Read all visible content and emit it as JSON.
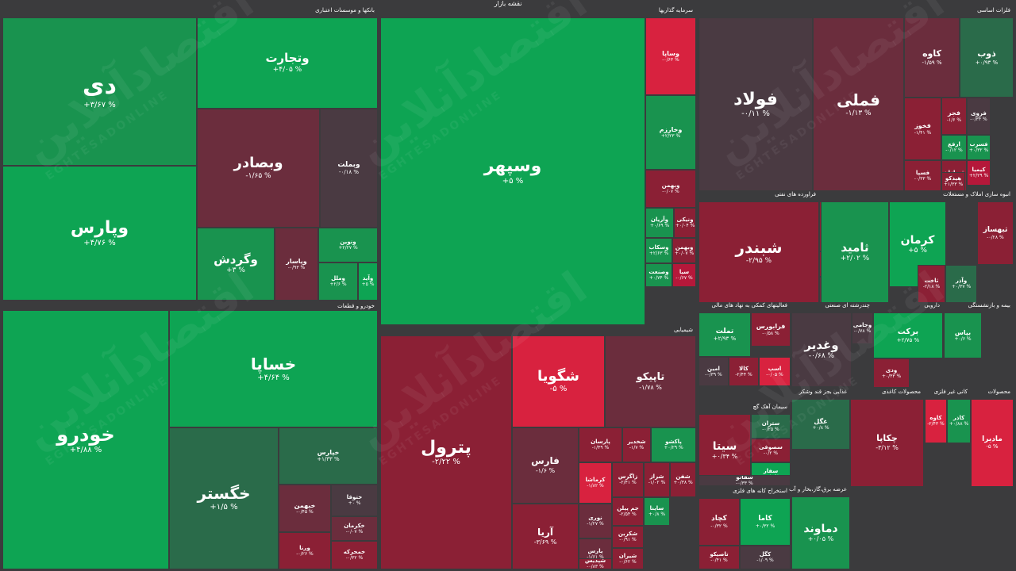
{
  "title": "نقشه بازار",
  "watermark": {
    "fa": "اقتصادآنلاین",
    "en": "EGHTESADONLINE"
  },
  "colors": {
    "g3": "#0ea453",
    "g2": "#19934f",
    "g1": "#2a6b4a",
    "n": "#4a3a42",
    "r1": "#6b2d3d",
    "r2": "#8b2035",
    "r3": "#b5183a",
    "r4": "#d8223f",
    "bg": "#3b3b3d"
  },
  "chart_data": {
    "type": "treemap",
    "sectors": [
      {
        "name": "بانکها و موسسات اعتباری",
        "stocks": [
          {
            "name": "دی",
            "change": "+۳/۶۷ %"
          },
          {
            "name": "وتجارت",
            "change": "+۴/۰۵ %"
          },
          {
            "name": "وپارس",
            "change": "+۴/۷۶ %"
          },
          {
            "name": "وبصادر",
            "change": "-۱/۶۵ %"
          },
          {
            "name": "وبملت",
            "change": "-۰/۱۸ %"
          },
          {
            "name": "وگردش",
            "change": "+۳ %"
          },
          {
            "name": "وپاسار",
            "change": "-۰/۹۳ %"
          },
          {
            "name": "ونوین",
            "change": "+۲/۲۷ %"
          },
          {
            "name": "وملل",
            "change": "+۲/۶ %"
          },
          {
            "name": "وآید",
            "change": "+۵ %"
          }
        ]
      },
      {
        "name": "سرمایه گذاریها",
        "stocks": [
          {
            "name": "وسپهر",
            "change": "+۵ %"
          },
          {
            "name": "وساپا",
            "change": "-۰/۶۳ %"
          },
          {
            "name": "وخارزم",
            "change": "+۲/۲۳ %"
          },
          {
            "name": "وبهمن",
            "change": "-۰/۰۷ %"
          },
          {
            "name": "وآریان",
            "change": "+۰/۶۹ %"
          },
          {
            "name": "ونیکی",
            "change": "+۰/۰۴ %"
          },
          {
            "name": "وسکاب",
            "change": "+۲/۶۳ %"
          },
          {
            "name": "وبهمن",
            "change": "+۰/۰۷ %"
          },
          {
            "name": "وصنعت",
            "change": "+۰/۷۴ %"
          },
          {
            "name": "سیا",
            "change": "-۰/۶۷ %"
          }
        ]
      },
      {
        "name": "فلزات اساسی",
        "stocks": [
          {
            "name": "فولاد",
            "change": "-۰/۱۱ %"
          },
          {
            "name": "فملی",
            "change": "-۱/۱۳ %"
          },
          {
            "name": "کاوه",
            "change": "-۱/۵۹ %"
          },
          {
            "name": "ذوب",
            "change": "+۰/۹۳ %"
          },
          {
            "name": "فخوز",
            "change": "-۱/۴۱ %"
          },
          {
            "name": "فجر",
            "change": "-۱/۶ %"
          },
          {
            "name": "فروی",
            "change": "-۰/۳۴ %"
          },
          {
            "name": "ارفع",
            "change": "-۰/۱۲ %"
          },
          {
            "name": "فسرب",
            "change": "+۰/۳۲ %"
          },
          {
            "name": "فسپا",
            "change": "-۰/۳۳ %"
          },
          {
            "name": "فسازان",
            "change": "-۱/۷۸ %"
          },
          {
            "name": "کیمیا",
            "change": "+۲/۲۹ %"
          },
          {
            "name": "هیدکو",
            "change": "+۱/۳۳ %"
          }
        ]
      },
      {
        "name": "فراورده های نفتی",
        "stocks": [
          {
            "name": "شبندر",
            "change": "-۲/۹۵ %"
          },
          {
            "name": "شبریز",
            "change": "-۱/۸۳ %"
          },
          {
            "name": "شنفت",
            "change": "-۱/۲ %"
          },
          {
            "name": "شسپا",
            "change": "-۰/۴۷ %"
          }
        ]
      },
      {
        "name": "انبوه سازی املاک و مستغلات",
        "stocks": [
          {
            "name": "ثامید",
            "change": "+۲/۰۲ %"
          },
          {
            "name": "کرمان",
            "change": "+۵ %"
          },
          {
            "name": "ثبهساز",
            "change": "-۰/۲۸ %"
          },
          {
            "name": "ثاخت",
            "change": "-۲/۱۸ %"
          },
          {
            "name": "وآذر",
            "change": "+۰/۳۷ %"
          }
        ]
      },
      {
        "name": "خودرو و قطعات",
        "stocks": [
          {
            "name": "خودرو",
            "change": "+۴/۸۸ %"
          },
          {
            "name": "خساپا",
            "change": "+۴/۶۴ %"
          },
          {
            "name": "خگستر",
            "change": "+۱/۵ %"
          },
          {
            "name": "خپارس",
            "change": "+۱/۳۳ %"
          },
          {
            "name": "خبهمن",
            "change": "-۰/۴۵ %"
          },
          {
            "name": "ختوقا",
            "change": "+۰ %"
          },
          {
            "name": "خکرمان",
            "change": "-۰/۰۷ %"
          },
          {
            "name": "ورنا",
            "change": "-۰/۲۶ %"
          },
          {
            "name": "خمحرکه",
            "change": "-۰/۳۲ %"
          }
        ]
      },
      {
        "name": "شیمیایی",
        "stocks": [
          {
            "name": "پترول",
            "change": "-۲/۲۲ %"
          },
          {
            "name": "شگویا",
            "change": "-۵ %"
          },
          {
            "name": "تاپیکو",
            "change": "-۱/۷۸ %"
          },
          {
            "name": "فارس",
            "change": "-۱/۶ %"
          },
          {
            "name": "آریا",
            "change": "-۳/۶۹ %"
          },
          {
            "name": "پارسان",
            "change": "-۱/۴۹ %"
          },
          {
            "name": "شخدیر",
            "change": "-۱/۷ %"
          },
          {
            "name": "پاکشو",
            "change": "+۰/۲۹ %"
          },
          {
            "name": "کرماشا",
            "change": "-۱/۸۲ %"
          },
          {
            "name": "زاگرس",
            "change": "-۲/۴۱ %"
          },
          {
            "name": "شراز",
            "change": "-۱/۰۲ %"
          },
          {
            "name": "شفن",
            "change": "+۰/۳۸ %"
          },
          {
            "name": "نوری",
            "change": "-۱/۲۷ %"
          },
          {
            "name": "جم پیلن",
            "change": "-۲/۵۴ %"
          },
          {
            "name": "ساینا",
            "change": "+۰/۸ %"
          },
          {
            "name": "پارس",
            "change": "-۱/۶۱ %"
          },
          {
            "name": "شکربن",
            "change": "-۰/۹۱ %"
          },
          {
            "name": "شپدیس",
            "change": "-۰/۸۳ %"
          },
          {
            "name": "شیران",
            "change": "-۰/۶۲ %"
          }
        ]
      },
      {
        "name": "فعالیتهای کمکی به نهاد های مالی",
        "stocks": [
          {
            "name": "تملت",
            "change": "+۲/۹۳ %"
          },
          {
            "name": "فرابورس",
            "change": "-۰/۵۸ %"
          },
          {
            "name": "امین",
            "change": "-۰/۳۹ %"
          },
          {
            "name": "کالا",
            "change": "-۲/۴۴ %"
          },
          {
            "name": "اسپ",
            "change": "-۰/۰۵ %"
          }
        ]
      },
      {
        "name": "چندرشته ای صنعتی",
        "stocks": [
          {
            "name": "وغدیر",
            "change": "-۰/۶۸ %"
          },
          {
            "name": "وجامی",
            "change": "-۰/۷۸ %"
          }
        ]
      },
      {
        "name": "دارویی",
        "stocks": [
          {
            "name": "برکت",
            "change": "+۲/۷۵ %"
          },
          {
            "name": "ودی",
            "change": "+۰/۴۳ %"
          }
        ]
      },
      {
        "name": "بیمه و بازنشستگی",
        "stocks": [
          {
            "name": "بپاس",
            "change": "+۰/۶ %"
          }
        ]
      },
      {
        "name": "غذایی بجز قند وشکر",
        "stocks": [
          {
            "name": "غگل",
            "change": "+۰/۸ %"
          }
        ]
      },
      {
        "name": "سیمان آهک گچ",
        "stocks": [
          {
            "name": "سیتا",
            "change": "+۰/۳۴ %"
          },
          {
            "name": "ستران",
            "change": "-۰/۲۵ %"
          },
          {
            "name": "سصوفی",
            "change": "-۰/۲ %"
          },
          {
            "name": "سفار",
            "change": "+۰/۱ %"
          },
          {
            "name": "سفانو",
            "change": "-۰/۳۳ %"
          }
        ]
      },
      {
        "name": "استخراج کانه های فلزی",
        "stocks": [
          {
            "name": "کچاد",
            "change": "-۰/۳۲ %"
          },
          {
            "name": "کاما",
            "change": "+۰/۳۲ %"
          },
          {
            "name": "کگل",
            "change": "-۱/۰۹ %"
          },
          {
            "name": "تاصیکو",
            "change": "-۰/۴۱ %"
          }
        ]
      },
      {
        "name": "عرضه برق،گاز،بخار و آب",
        "stocks": [
          {
            "name": "دماوند",
            "change": "+۰/۰۵ %"
          }
        ]
      },
      {
        "name": "محصولات کاغذی",
        "stocks": [
          {
            "name": "چکاپا",
            "change": "-۳/۱۲ %"
          }
        ]
      },
      {
        "name": "کانی غیر فلزی",
        "stocks": [
          {
            "name": "کاوه",
            "change": "-۲/۴۳ %"
          },
          {
            "name": "کاذر",
            "change": "+۰/۸۸ %"
          }
        ]
      },
      {
        "name": "محصولات",
        "stocks": [
          {
            "name": "مادیرا",
            "change": "-۵ %"
          }
        ]
      }
    ]
  }
}
